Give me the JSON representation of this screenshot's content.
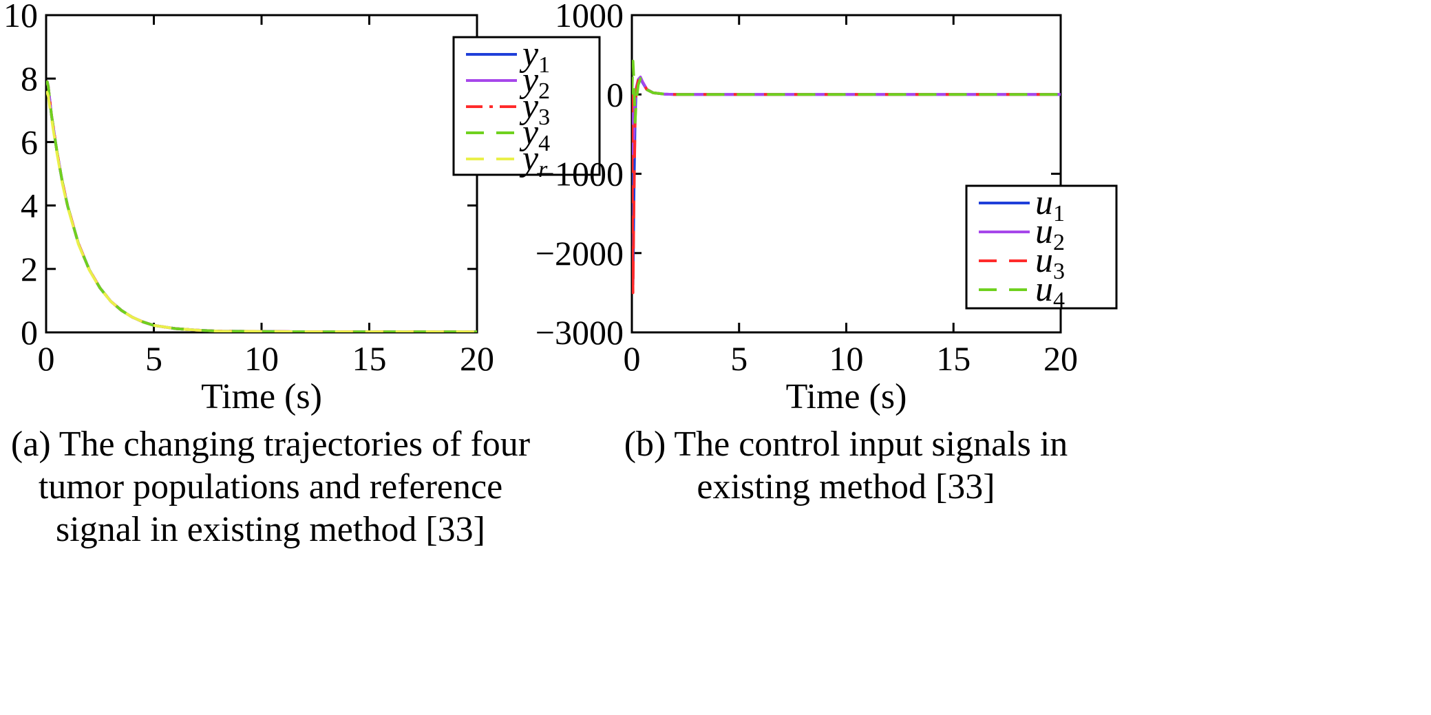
{
  "chart_data": [
    {
      "type": "line",
      "panel": "a",
      "caption": [
        "(a) The changing trajectories of four",
        "tumor populations and reference",
        "signal in existing method [33]"
      ],
      "xlabel": "Time (s)",
      "ylabel": "",
      "xlim": [
        0,
        20
      ],
      "ylim": [
        0,
        10
      ],
      "xticks": [
        0,
        5,
        10,
        15,
        20
      ],
      "yticks": [
        0,
        2,
        4,
        6,
        8,
        10
      ],
      "grid": false,
      "legend_position": "top-right",
      "x": [
        0,
        0.05,
        0.1,
        0.25,
        0.5,
        0.75,
        1,
        1.5,
        2,
        2.5,
        3,
        3.5,
        4,
        4.5,
        5,
        6,
        7,
        8,
        10,
        12,
        15,
        20
      ],
      "series": [
        {
          "name": "y",
          "sub": "1",
          "color": "#1f3fd9",
          "dash": "solid",
          "values": [
            7.8,
            7.9,
            7.75,
            6.85,
            5.7,
            4.75,
            3.98,
            2.8,
            1.98,
            1.4,
            0.98,
            0.69,
            0.48,
            0.33,
            0.22,
            0.12,
            0.07,
            0.04,
            0.03,
            0.02,
            0.02,
            0.02
          ]
        },
        {
          "name": "y",
          "sub": "2",
          "color": "#a647ea",
          "dash": "solid",
          "values": [
            7.8,
            7.9,
            7.75,
            6.85,
            5.7,
            4.75,
            3.98,
            2.8,
            1.98,
            1.4,
            0.98,
            0.69,
            0.48,
            0.33,
            0.22,
            0.12,
            0.07,
            0.04,
            0.03,
            0.02,
            0.02,
            0.02
          ]
        },
        {
          "name": "y",
          "sub": "3",
          "color": "#ff2b2b",
          "dash": "dashdot",
          "values": [
            7.8,
            7.9,
            7.75,
            6.85,
            5.7,
            4.75,
            3.98,
            2.8,
            1.98,
            1.4,
            0.98,
            0.69,
            0.48,
            0.33,
            0.22,
            0.12,
            0.07,
            0.04,
            0.03,
            0.02,
            0.02,
            0.02
          ]
        },
        {
          "name": "y",
          "sub": "4",
          "color": "#6fd11f",
          "dash": "dashed",
          "values": [
            7.8,
            7.9,
            7.75,
            6.85,
            5.7,
            4.75,
            3.98,
            2.8,
            1.98,
            1.4,
            0.98,
            0.69,
            0.48,
            0.33,
            0.22,
            0.12,
            0.07,
            0.04,
            0.03,
            0.02,
            0.02,
            0.02
          ]
        },
        {
          "name": "y",
          "sub": "r",
          "color": "#eaf04a",
          "dash": "dashed",
          "values": [
            7.6,
            7.55,
            7.45,
            6.75,
            5.65,
            4.7,
            3.95,
            2.78,
            1.97,
            1.39,
            0.98,
            0.69,
            0.48,
            0.33,
            0.22,
            0.12,
            0.07,
            0.04,
            0.03,
            0.02,
            0.02,
            0.02
          ]
        }
      ]
    },
    {
      "type": "line",
      "panel": "b",
      "caption": [
        "(b) The control input signals in",
        "existing method [33]"
      ],
      "xlabel": "Time (s)",
      "ylabel": "",
      "xlim": [
        0,
        20
      ],
      "ylim": [
        -3000,
        1000
      ],
      "xticks": [
        0,
        5,
        10,
        15,
        20
      ],
      "yticks": [
        1000,
        0,
        -1000,
        -2000,
        -3000
      ],
      "ytick_labels": [
        "1000",
        "0",
        "−1000",
        "−2000",
        "−3000"
      ],
      "grid": false,
      "legend_position": "bottom-right",
      "series": [
        {
          "name": "u",
          "sub": "1",
          "color": "#1f3fd9",
          "dash": "solid",
          "x": [
            0,
            0.05,
            0.1,
            0.15,
            0.2,
            0.3,
            0.4,
            0.5,
            0.7,
            1,
            1.5,
            2,
            3,
            5,
            10,
            20
          ],
          "values": [
            0,
            -2400,
            -1200,
            -300,
            60,
            180,
            210,
            150,
            60,
            20,
            5,
            0,
            0,
            0,
            0,
            0
          ]
        },
        {
          "name": "u",
          "sub": "2",
          "color": "#a647ea",
          "dash": "solid",
          "x": [
            0,
            0.05,
            0.1,
            0.15,
            0.2,
            0.3,
            0.4,
            0.5,
            0.7,
            1,
            1.5,
            2,
            3,
            5,
            10,
            20
          ],
          "values": [
            0,
            -800,
            -500,
            -100,
            80,
            190,
            220,
            160,
            65,
            20,
            5,
            0,
            0,
            0,
            0,
            0
          ]
        },
        {
          "name": "u",
          "sub": "3",
          "color": "#ff2b2b",
          "dash": "dashed",
          "x": [
            0,
            0.05,
            0.1,
            0.15,
            0.2,
            0.3,
            0.4,
            0.5,
            0.7,
            1,
            1.5,
            2,
            3,
            5,
            10,
            20
          ],
          "values": [
            0,
            -2500,
            -1300,
            -350,
            50,
            175,
            205,
            150,
            60,
            20,
            5,
            0,
            0,
            0,
            0,
            0
          ]
        },
        {
          "name": "u",
          "sub": "4",
          "color": "#6fd11f",
          "dash": "dashed",
          "x": [
            0,
            0.05,
            0.1,
            0.15,
            0.2,
            0.3,
            0.4,
            0.5,
            0.7,
            1,
            1.5,
            2,
            3,
            5,
            10,
            20
          ],
          "values": [
            0,
            420,
            150,
            -350,
            -100,
            120,
            200,
            150,
            60,
            20,
            5,
            0,
            0,
            0,
            0,
            0
          ]
        }
      ]
    }
  ]
}
